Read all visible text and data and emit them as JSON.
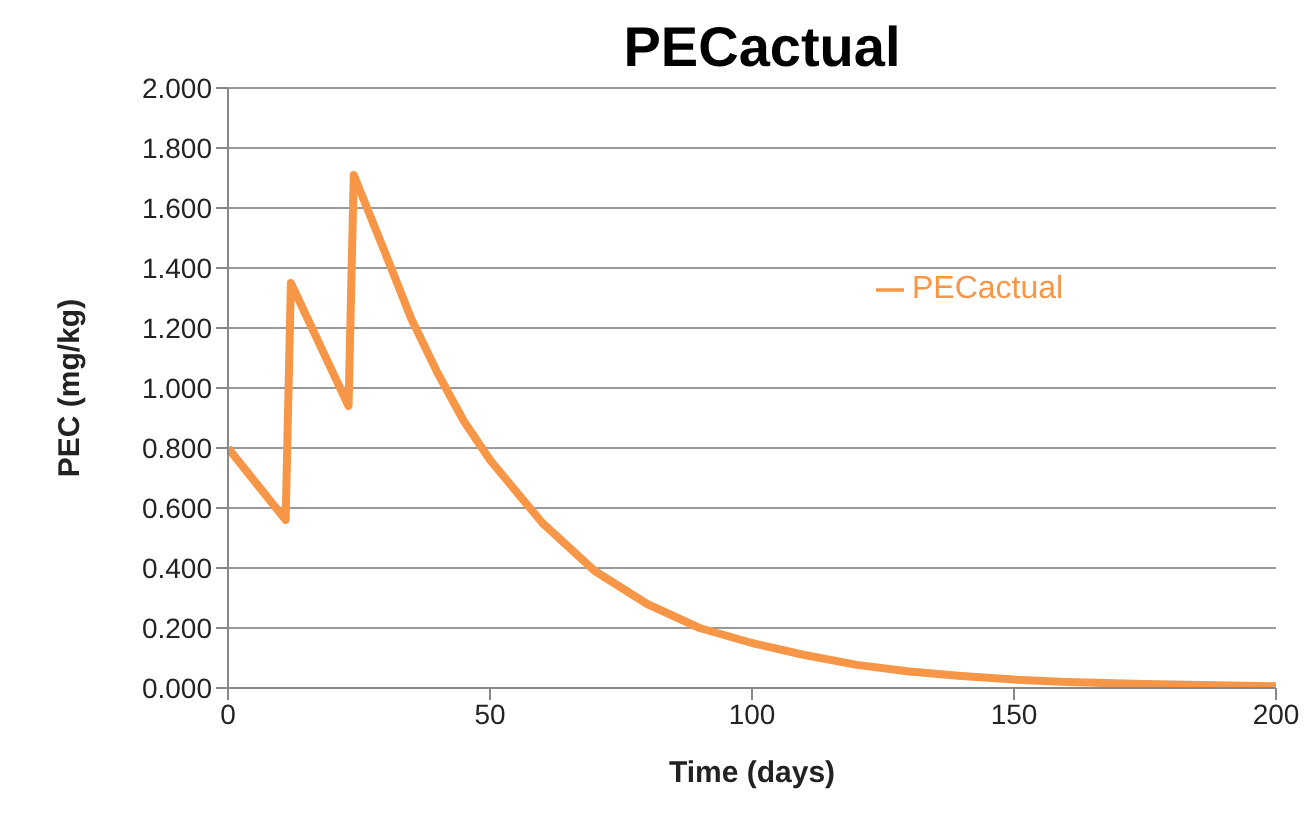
{
  "chart_data": {
    "type": "line",
    "title": "PECactual",
    "xlabel": "Time (days)",
    "ylabel": "PEC (mg/kg)",
    "x": [
      0,
      11,
      12,
      23,
      24,
      30,
      35,
      40,
      45,
      50,
      60,
      70,
      80,
      90,
      100,
      110,
      120,
      130,
      140,
      150,
      160,
      175,
      200
    ],
    "series": [
      {
        "name": "PECactual",
        "color": "#f79646",
        "values": [
          0.8,
          0.56,
          1.35,
          0.94,
          1.71,
          1.45,
          1.23,
          1.05,
          0.89,
          0.76,
          0.55,
          0.39,
          0.28,
          0.2,
          0.15,
          0.11,
          0.077,
          0.055,
          0.04,
          0.028,
          0.02,
          0.013,
          0.006
        ]
      }
    ],
    "xlim": [
      0,
      200
    ],
    "xticks": [
      0,
      50,
      100,
      150,
      200
    ],
    "ylim": [
      0,
      2
    ],
    "yticks": [
      {
        "value": 0,
        "label": "0.000"
      },
      {
        "value": 0.2,
        "label": "0.200"
      },
      {
        "value": 0.4,
        "label": "0.400"
      },
      {
        "value": 0.6,
        "label": "0.600"
      },
      {
        "value": 0.8,
        "label": "0.800"
      },
      {
        "value": 1,
        "label": "1.000"
      },
      {
        "value": 1.2,
        "label": "1.200"
      },
      {
        "value": 1.4,
        "label": "1.400"
      },
      {
        "value": 1.6,
        "label": "1.600"
      },
      {
        "value": 1.8,
        "label": "1.800"
      },
      {
        "value": 2,
        "label": "2.000"
      }
    ],
    "grid": "y",
    "legend": "right",
    "marker": "none",
    "line_style": "solid"
  }
}
